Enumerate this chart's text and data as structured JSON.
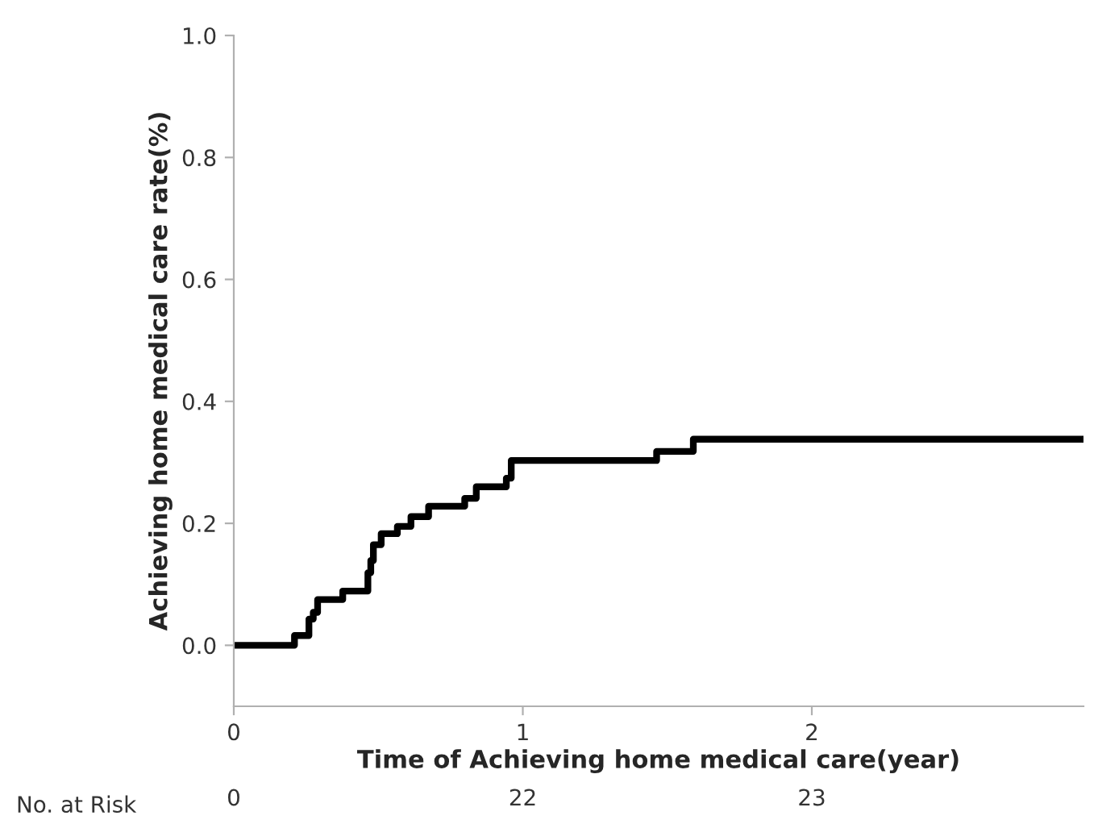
{
  "chart_data": {
    "type": "step",
    "xlabel": "Time of Achieving home medical care(year)",
    "ylabel": "Achieving home medical care rate(%)",
    "series": [
      {
        "color": "#000000",
        "x": [
          0,
          0.21,
          0.26,
          0.275,
          0.29,
          0.377,
          0.464,
          0.474,
          0.483,
          0.51,
          0.566,
          0.613,
          0.674,
          0.799,
          0.839,
          0.943,
          0.96,
          1.463,
          1.59,
          2.94
        ],
        "values": [
          0,
          0.016,
          0.043,
          0.054,
          0.075,
          0.089,
          0.119,
          0.139,
          0.165,
          0.183,
          0.195,
          0.211,
          0.228,
          0.241,
          0.26,
          0.274,
          0.303,
          0.318,
          0.338,
          0.338
        ]
      }
    ],
    "xlim": [
      0,
      2.94
    ],
    "xticks": [
      0,
      1,
      2
    ],
    "ylim": [
      -0.1,
      1.0
    ],
    "yticks": [
      {
        "value": 0,
        "label": "0.0"
      },
      {
        "value": 0.2,
        "label": "0.2"
      },
      {
        "value": 0.4,
        "label": "0.4"
      },
      {
        "value": 0.6,
        "label": "0.6"
      },
      {
        "value": 0.8,
        "label": "0.8"
      },
      {
        "value": 1.0,
        "label": "1.0"
      }
    ],
    "grid": false,
    "marker": "none",
    "line_style": "solid",
    "annotations": [
      "No. at Risk",
      "0",
      "22",
      "23"
    ]
  }
}
